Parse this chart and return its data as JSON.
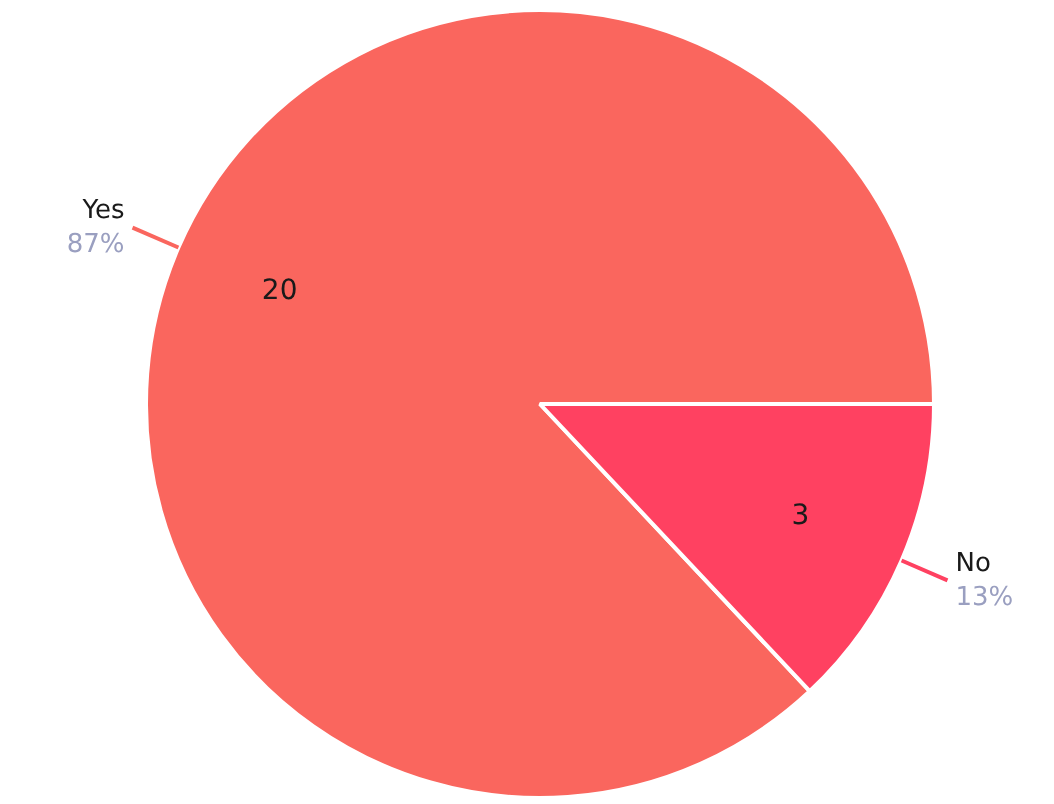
{
  "chart_data": {
    "type": "pie",
    "categories": [
      "Yes",
      "No"
    ],
    "values": [
      87,
      13
    ],
    "colors": [
      "#fa665e",
      "#ff4161"
    ],
    "value_labels": [
      "87%",
      "13%"
    ],
    "annotations": [
      {
        "text": "20",
        "x": "Yes"
      },
      {
        "text": "3",
        "x": "No"
      }
    ]
  }
}
